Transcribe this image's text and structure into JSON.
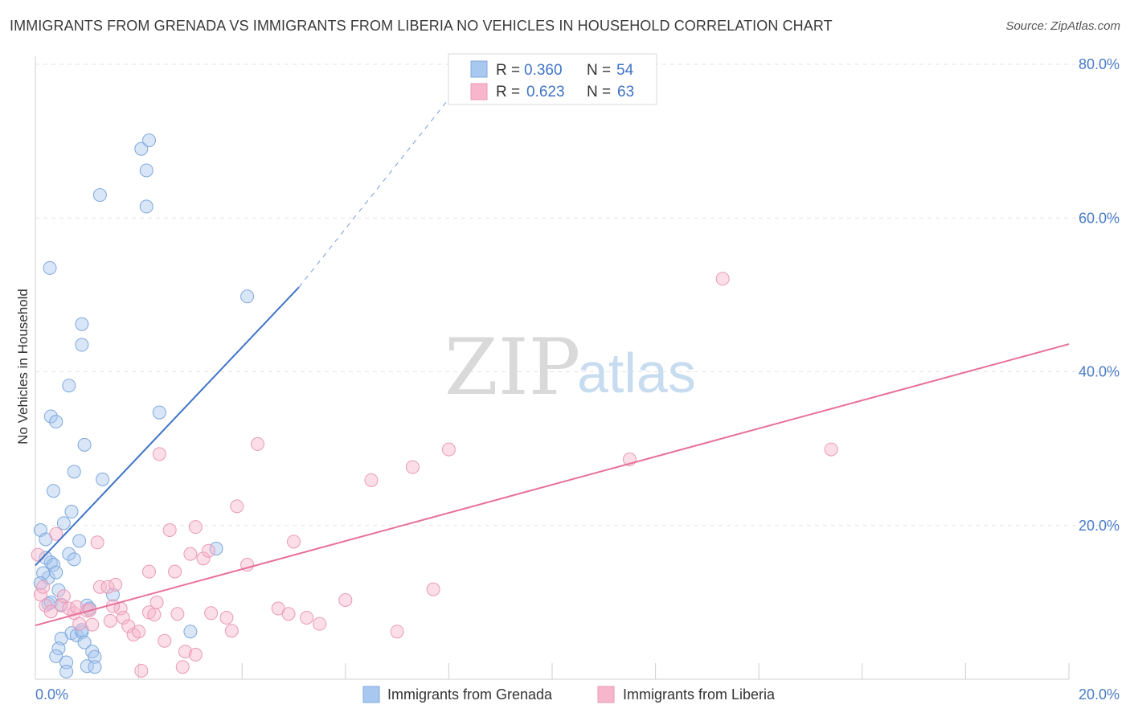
{
  "header": {
    "title": "IMMIGRANTS FROM GRENADA VS IMMIGRANTS FROM LIBERIA NO VEHICLES IN HOUSEHOLD CORRELATION CHART",
    "source": "Source: ZipAtlas.com"
  },
  "watermark": {
    "zip": "ZIP",
    "atlas": "atlas"
  },
  "legend": {
    "r_label": "R =",
    "n_label": "N =",
    "rows": [
      {
        "r": "0.360",
        "n": "54",
        "color": "#a9c8f0"
      },
      {
        "r": "0.623",
        "n": "63",
        "color": "#f7b6cc"
      }
    ]
  },
  "bottom_legend": {
    "items": [
      {
        "label": "Immigrants from Grenada",
        "color": "#a9c8f0"
      },
      {
        "label": "Immigrants from Liberia",
        "color": "#f7b6cc"
      }
    ]
  },
  "chart_data": {
    "type": "scatter",
    "title": "IMMIGRANTS FROM GRENADA VS IMMIGRANTS FROM LIBERIA NO VEHICLES IN HOUSEHOLD CORRELATION CHART",
    "ylabel": "No Vehicles in Household",
    "xlabel": "",
    "xlim": [
      0,
      20
    ],
    "ylim": [
      0,
      80
    ],
    "x_ticks": [
      "0.0%",
      "20.0%"
    ],
    "y_ticks": [
      "20.0%",
      "40.0%",
      "60.0%",
      "80.0%"
    ],
    "y_tick_values": [
      20,
      40,
      60,
      80
    ],
    "grid": true,
    "legend_position": "top-center",
    "series": [
      {
        "name": "Immigrants from Grenada",
        "color": "#3f74c6",
        "fill": "#a9c8f0",
        "r": 0.36,
        "n": 54,
        "trend": {
          "x0": 0,
          "y0": 14.8,
          "x1": 5.1,
          "y1": 51.0,
          "dash_to_x": 8.0,
          "dash_to_y": 75.5
        },
        "points": [
          [
            0.1,
            19.4
          ],
          [
            0.2,
            18.2
          ],
          [
            0.25,
            13.2
          ],
          [
            0.15,
            13.8
          ],
          [
            0.3,
            15.2
          ],
          [
            0.35,
            14.9
          ],
          [
            0.4,
            13.9
          ],
          [
            0.45,
            11.6
          ],
          [
            0.5,
            9.7
          ],
          [
            0.55,
            20.3
          ],
          [
            0.65,
            16.3
          ],
          [
            0.75,
            15.6
          ],
          [
            0.7,
            21.8
          ],
          [
            0.85,
            18.0
          ],
          [
            0.75,
            27.0
          ],
          [
            0.95,
            30.5
          ],
          [
            1.3,
            26.0
          ],
          [
            0.35,
            24.5
          ],
          [
            0.3,
            34.2
          ],
          [
            0.4,
            33.5
          ],
          [
            0.65,
            38.2
          ],
          [
            0.9,
            43.5
          ],
          [
            0.9,
            46.2
          ],
          [
            0.28,
            53.5
          ],
          [
            1.25,
            63.0
          ],
          [
            2.05,
            69.0
          ],
          [
            2.2,
            70.1
          ],
          [
            2.15,
            66.2
          ],
          [
            2.15,
            61.5
          ],
          [
            4.1,
            49.8
          ],
          [
            2.4,
            34.7
          ],
          [
            1.0,
            9.6
          ],
          [
            1.05,
            9.2
          ],
          [
            0.7,
            6.0
          ],
          [
            0.8,
            5.7
          ],
          [
            0.9,
            6.1
          ],
          [
            0.5,
            5.3
          ],
          [
            0.45,
            4.0
          ],
          [
            0.95,
            4.8
          ],
          [
            1.1,
            3.6
          ],
          [
            1.15,
            2.9
          ],
          [
            0.4,
            3.0
          ],
          [
            0.6,
            2.2
          ],
          [
            1.0,
            1.7
          ],
          [
            1.15,
            1.6
          ],
          [
            0.6,
            1.0
          ],
          [
            1.5,
            11.0
          ],
          [
            3.5,
            17.0
          ],
          [
            3.0,
            6.2
          ],
          [
            0.25,
            9.8
          ],
          [
            0.1,
            12.5
          ],
          [
            0.2,
            15.8
          ],
          [
            0.3,
            10.0
          ],
          [
            0.9,
            6.4
          ]
        ]
      },
      {
        "name": "Immigrants from Liberia",
        "color": "#e8709a",
        "fill": "#f7b6cc",
        "r": 0.623,
        "n": 63,
        "trend": {
          "x0": 0,
          "y0": 7.0,
          "x1": 20,
          "y1": 43.6
        },
        "points": [
          [
            0.1,
            11.0
          ],
          [
            0.2,
            9.6
          ],
          [
            0.3,
            8.8
          ],
          [
            0.5,
            9.6
          ],
          [
            0.55,
            10.8
          ],
          [
            0.65,
            9.2
          ],
          [
            0.75,
            8.6
          ],
          [
            0.85,
            7.2
          ],
          [
            1.0,
            8.9
          ],
          [
            1.05,
            9.0
          ],
          [
            1.1,
            7.1
          ],
          [
            1.25,
            12.0
          ],
          [
            1.2,
            17.8
          ],
          [
            1.4,
            12.0
          ],
          [
            1.45,
            7.6
          ],
          [
            1.55,
            12.3
          ],
          [
            1.65,
            9.2
          ],
          [
            1.7,
            8.0
          ],
          [
            1.8,
            6.9
          ],
          [
            1.9,
            5.8
          ],
          [
            2.0,
            6.2
          ],
          [
            2.05,
            1.1
          ],
          [
            2.2,
            8.7
          ],
          [
            2.2,
            14.0
          ],
          [
            2.3,
            8.4
          ],
          [
            2.35,
            10.0
          ],
          [
            2.4,
            29.3
          ],
          [
            2.5,
            5.0
          ],
          [
            2.6,
            19.4
          ],
          [
            2.7,
            14.0
          ],
          [
            2.75,
            8.5
          ],
          [
            2.85,
            1.6
          ],
          [
            2.9,
            3.6
          ],
          [
            3.0,
            16.3
          ],
          [
            3.1,
            3.2
          ],
          [
            3.1,
            19.8
          ],
          [
            3.25,
            15.7
          ],
          [
            3.35,
            16.7
          ],
          [
            3.4,
            8.6
          ],
          [
            3.7,
            8.0
          ],
          [
            3.8,
            6.3
          ],
          [
            3.9,
            22.5
          ],
          [
            4.1,
            14.9
          ],
          [
            4.3,
            30.6
          ],
          [
            4.7,
            9.2
          ],
          [
            4.9,
            8.5
          ],
          [
            5.0,
            17.9
          ],
          [
            5.25,
            8.0
          ],
          [
            5.5,
            7.2
          ],
          [
            6.0,
            10.3
          ],
          [
            6.5,
            25.9
          ],
          [
            7.0,
            6.2
          ],
          [
            7.3,
            27.6
          ],
          [
            7.7,
            11.7
          ],
          [
            8.0,
            29.9
          ],
          [
            11.5,
            28.6
          ],
          [
            13.3,
            52.1
          ],
          [
            15.4,
            29.9
          ],
          [
            0.15,
            12.0
          ],
          [
            0.4,
            18.9
          ],
          [
            0.05,
            16.2
          ],
          [
            0.8,
            9.4
          ],
          [
            1.5,
            9.5
          ]
        ]
      }
    ]
  }
}
